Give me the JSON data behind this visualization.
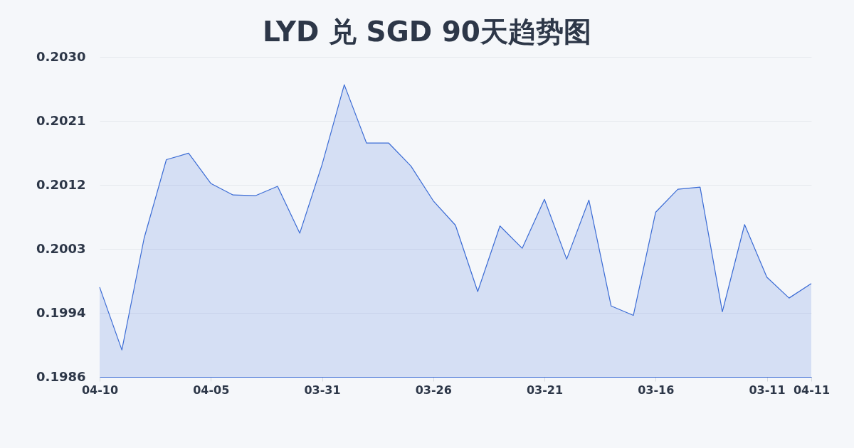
{
  "chart_data": {
    "type": "area",
    "title": "LYD 兑 SGD 90天趋势图",
    "categories": [
      "04-10",
      null,
      null,
      null,
      null,
      "04-05",
      null,
      null,
      null,
      null,
      "03-31",
      null,
      null,
      null,
      null,
      "03-26",
      null,
      null,
      null,
      null,
      "03-21",
      null,
      null,
      null,
      null,
      "03-16",
      null,
      null,
      null,
      null,
      "03-11",
      null,
      "04-11"
    ],
    "series": [
      {
        "color": "#3a6bd5",
        "values": [
          0.1998,
          0.19893,
          0.20048,
          0.20157,
          0.20166,
          0.20124,
          0.20108,
          0.20107,
          0.2012,
          0.20055,
          0.2015,
          0.20261,
          0.2018,
          0.2018,
          0.20148,
          0.201,
          0.20066,
          0.19974,
          0.20065,
          0.20034,
          0.20102,
          0.20019,
          0.20101,
          0.19954,
          0.19941,
          0.20084,
          0.20116,
          0.20119,
          0.19946,
          0.20067,
          0.19994,
          0.19965,
          0.19985
        ]
      }
    ],
    "ylim": [
      0.198556,
      0.202996
    ],
    "yticks": [
      {
        "value": 0.198556,
        "label": "0.1986"
      },
      {
        "value": 0.199444,
        "label": "0.1994"
      },
      {
        "value": 0.200332,
        "label": "0.2003"
      },
      {
        "value": 0.20122,
        "label": "0.2012"
      },
      {
        "value": 0.202108,
        "label": "0.2021"
      },
      {
        "value": 0.202996,
        "label": "0.2030"
      }
    ],
    "grid": "y"
  }
}
